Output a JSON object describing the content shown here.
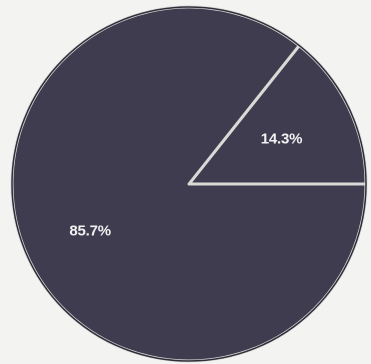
{
  "chart_data": {
    "type": "pie",
    "slices": [
      {
        "label": "14.3%",
        "value": 14.3
      },
      {
        "label": "85.7%",
        "value": 85.7
      }
    ],
    "colors": {
      "slice_fill": "#3f3c4f",
      "slice_edge": "#d9d9d6",
      "background": "#f3f3f1"
    },
    "legend": "none",
    "grid": false
  }
}
